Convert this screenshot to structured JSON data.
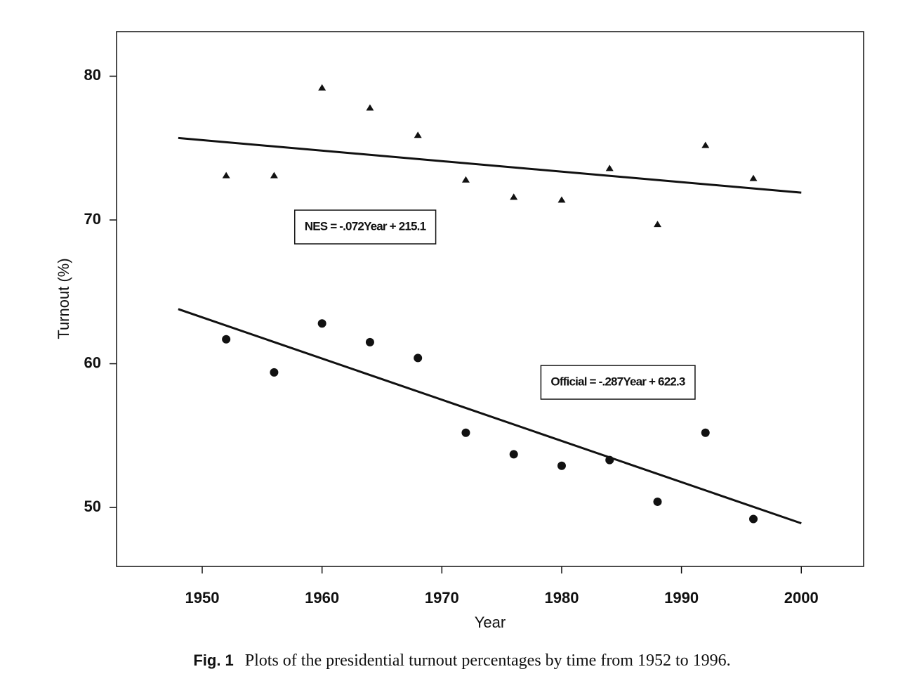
{
  "chart_data": {
    "type": "scatter",
    "x_label": "Year",
    "y_label": "Turnout (%)",
    "caption_label": "Fig. 1",
    "caption": "Plots of the presidential turnout percentages by time from 1952 to 1996.",
    "x": [
      1952,
      1956,
      1960,
      1964,
      1968,
      1972,
      1976,
      1980,
      1984,
      1988,
      1992,
      1996
    ],
    "series": [
      {
        "marker": "triangle",
        "color": "#111111",
        "values": [
          73.1,
          73.1,
          79.2,
          77.8,
          75.9,
          72.8,
          71.6,
          71.4,
          73.6,
          69.7,
          75.2,
          72.9
        ]
      },
      {
        "marker": "circle",
        "color": "#111111",
        "values": [
          61.7,
          59.4,
          62.8,
          61.5,
          60.4,
          55.2,
          53.7,
          52.9,
          53.3,
          50.4,
          55.2,
          49.2
        ]
      }
    ],
    "trend_lines": [
      {
        "x": [
          1948,
          2000
        ],
        "values": [
          75.7,
          71.9
        ],
        "annotation": "NES = -.072Year + 215.1"
      },
      {
        "x": [
          1948,
          2000
        ],
        "values": [
          63.8,
          48.9
        ],
        "annotation": "Official = -.287Year + 622.3"
      }
    ],
    "xlim": [
      1942.85,
      2005.2
    ],
    "ylim": [
      45.9,
      83.1
    ],
    "xticks": [
      1950,
      1960,
      1970,
      1980,
      1990,
      2000
    ],
    "yticks": [
      50,
      60,
      70,
      80
    ]
  }
}
